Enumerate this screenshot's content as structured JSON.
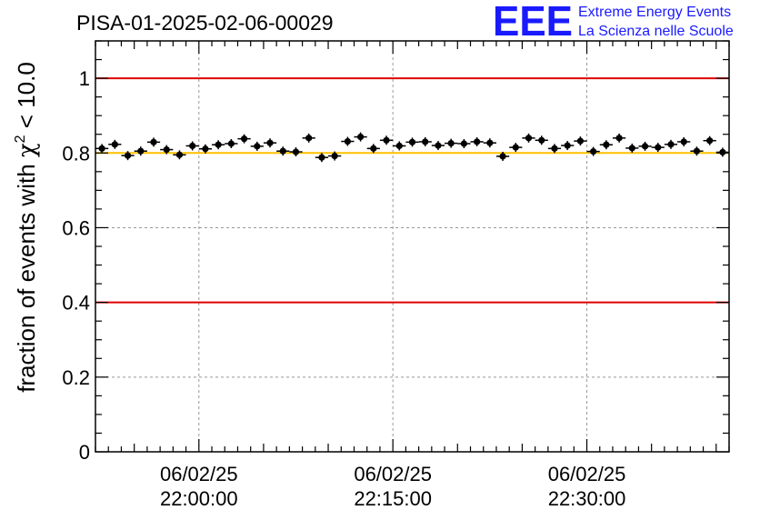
{
  "title": "PISA-01-2025-02-06-00029",
  "logo": {
    "mark": "EEE",
    "line1": "Extreme Energy Events",
    "line2": "La Scienza nelle Scuole"
  },
  "colors": {
    "limit_line": "#e00000",
    "target_line": "#ffc000",
    "marker": "#000000",
    "grid": "#999999",
    "logo": "#1a1aff"
  },
  "chart_data": {
    "type": "scatter",
    "title": "PISA-01-2025-02-06-00029",
    "ylabel_prefix": "fraction of events with ",
    "ylabel_symbol": "χ",
    "ylabel_sup": "2",
    "ylabel_suffix": " < 10.0",
    "ylim": [
      0,
      1.1
    ],
    "xlim": [
      "21:52:00",
      "22:41:00"
    ],
    "grid": true,
    "yticks": [
      {
        "value": 0,
        "label": "0"
      },
      {
        "value": 0.2,
        "label": "0.2"
      },
      {
        "value": 0.4,
        "label": "0.4"
      },
      {
        "value": 0.6,
        "label": "0.6"
      },
      {
        "value": 0.8,
        "label": "0.8"
      },
      {
        "value": 1,
        "label": "1"
      }
    ],
    "xticks": [
      {
        "time": "22:00:00",
        "date": "06/02/25",
        "clock": "22:00:00"
      },
      {
        "time": "22:15:00",
        "date": "06/02/25",
        "clock": "22:15:00"
      },
      {
        "time": "22:30:00",
        "date": "06/02/25",
        "clock": "22:30:00"
      }
    ],
    "reference_lines": [
      {
        "y": 1.0,
        "kind": "limit"
      },
      {
        "y": 0.8,
        "kind": "target"
      },
      {
        "y": 0.4,
        "kind": "limit"
      }
    ],
    "points": {
      "x": [
        "21:52:30",
        "21:53:30",
        "21:54:30",
        "21:55:30",
        "21:56:30",
        "21:57:30",
        "21:58:30",
        "21:59:30",
        "22:00:30",
        "22:01:30",
        "22:02:30",
        "22:03:30",
        "22:04:30",
        "22:05:30",
        "22:06:30",
        "22:07:30",
        "22:08:30",
        "22:09:30",
        "22:10:30",
        "22:11:30",
        "22:12:30",
        "22:13:30",
        "22:14:30",
        "22:15:30",
        "22:16:30",
        "22:17:30",
        "22:18:30",
        "22:19:30",
        "22:20:30",
        "22:21:30",
        "22:22:30",
        "22:23:30",
        "22:24:30",
        "22:25:30",
        "22:26:30",
        "22:27:30",
        "22:28:30",
        "22:29:30",
        "22:30:30",
        "22:31:30",
        "22:32:30",
        "22:33:30",
        "22:34:30",
        "22:35:30",
        "22:36:30",
        "22:37:30",
        "22:38:30",
        "22:39:30",
        "22:40:30"
      ],
      "y": [
        0.812,
        0.823,
        0.793,
        0.805,
        0.829,
        0.809,
        0.795,
        0.819,
        0.811,
        0.822,
        0.825,
        0.838,
        0.818,
        0.827,
        0.805,
        0.803,
        0.84,
        0.788,
        0.792,
        0.831,
        0.843,
        0.812,
        0.834,
        0.819,
        0.829,
        0.83,
        0.82,
        0.826,
        0.825,
        0.83,
        0.827,
        0.791,
        0.815,
        0.84,
        0.834,
        0.812,
        0.82,
        0.832,
        0.804,
        0.822,
        0.84,
        0.813,
        0.818,
        0.815,
        0.823,
        0.83,
        0.805,
        0.833,
        0.802
      ]
    }
  }
}
